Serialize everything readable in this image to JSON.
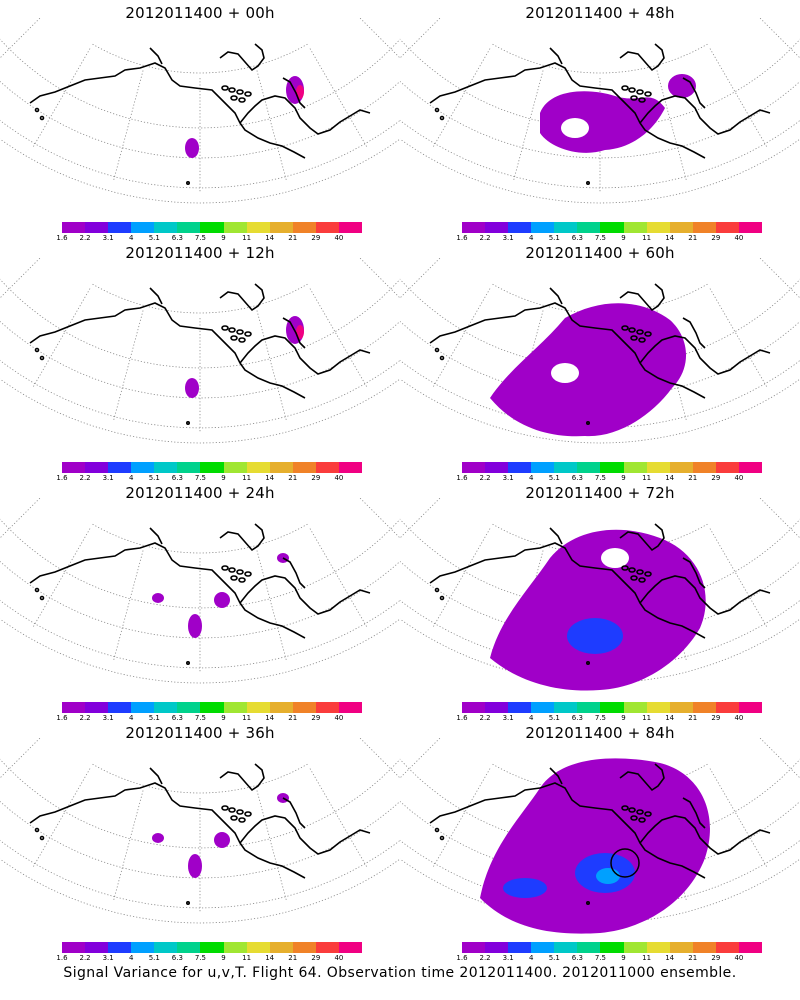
{
  "panels": [
    {
      "title": "2012011400 + 00h",
      "level": 0
    },
    {
      "title": "2012011400 + 48h",
      "level": 2
    },
    {
      "title": "2012011400 + 12h",
      "level": 0
    },
    {
      "title": "2012011400 + 60h",
      "level": 3
    },
    {
      "title": "2012011400 + 24h",
      "level": 1
    },
    {
      "title": "2012011400 + 72h",
      "level": 4
    },
    {
      "title": "2012011400 + 36h",
      "level": 1
    },
    {
      "title": "2012011400 + 84h",
      "level": 5
    }
  ],
  "colorbar": {
    "labels": [
      "1.6",
      "2.2",
      "3.1",
      "4",
      "5.1",
      "6.3",
      "7.5",
      "9",
      "11",
      "14",
      "21",
      "29",
      "40"
    ],
    "colors": [
      "#a000c8",
      "#8200dc",
      "#1e3cff",
      "#00a0ff",
      "#00c8c8",
      "#00d28c",
      "#00dc00",
      "#a0e632",
      "#e6dc32",
      "#e6af2d",
      "#f08228",
      "#fa3c3c",
      "#f00082"
    ]
  },
  "footer": "Signal Variance for u,v,T. Flight 64. Observation time 2012011400. 2012011000 ensemble."
}
